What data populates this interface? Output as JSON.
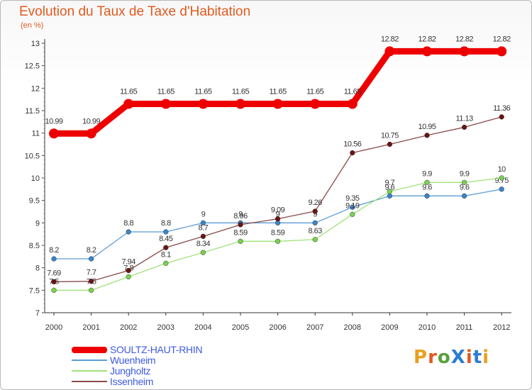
{
  "title": "Evolution du Taux de Taxe d'Habitation",
  "subtitle": "(en %)",
  "logo": {
    "text": "ProXiti",
    "colors": [
      "#e8a020",
      "#e05a20",
      "#5aa03a",
      "#2a7ed0",
      "#e05a20",
      "#2a7ed0",
      "#e8a020"
    ]
  },
  "chart_data": {
    "type": "line",
    "x": [
      "2000",
      "2001",
      "2002",
      "2003",
      "2004",
      "2005",
      "2006",
      "2007",
      "2008",
      "2009",
      "2010",
      "2011",
      "2012"
    ],
    "ylim": [
      7,
      13
    ],
    "yticks": [
      "7",
      "7.5",
      "8",
      "8.5",
      "9",
      "9.5",
      "10",
      "10.5",
      "11",
      "11.5",
      "12",
      "12.5",
      "13"
    ],
    "yticks_values": [
      7,
      7.5,
      8,
      8.5,
      9,
      9.5,
      10,
      10.5,
      11,
      11.5,
      12,
      12.5,
      13
    ],
    "series": [
      {
        "name": "SOULTZ-HAUT-RHIN",
        "color": "#ee0000",
        "marker": "#ee0000",
        "thick": true,
        "values": [
          10.99,
          10.99,
          11.65,
          11.65,
          11.65,
          11.65,
          11.65,
          11.65,
          11.65,
          12.82,
          12.82,
          12.82,
          12.82
        ],
        "labels": [
          "10.99",
          "10.99",
          "11.65",
          "11.65",
          "11.65",
          "11.65",
          "11.65",
          "11.65",
          "11.65",
          "12.82",
          "12.82",
          "12.82",
          "12.82"
        ]
      },
      {
        "name": "Wuenheim",
        "color": "#5b9bd5",
        "marker": "#3a85c8",
        "thick": false,
        "values": [
          8.2,
          8.2,
          8.8,
          8.8,
          9,
          9,
          9,
          9,
          9.35,
          9.6,
          9.6,
          9.6,
          9.75
        ],
        "labels": [
          "8.2",
          "8.2",
          "8.8",
          "8.8",
          "9",
          "9",
          "9",
          "9",
          "9.35",
          "9.6",
          "9.6",
          "9.6",
          "9.75"
        ]
      },
      {
        "name": "Jungholtz",
        "color": "#9ee27a",
        "marker": "#79d24e",
        "thick": false,
        "values": [
          7.5,
          7.5,
          7.8,
          8.1,
          8.34,
          8.59,
          8.59,
          8.63,
          9.19,
          9.7,
          9.9,
          9.9,
          10
        ],
        "labels": [
          "7.5",
          "7.5",
          "7.8",
          "8.1",
          "8.34",
          "8.59",
          "8.59",
          "8.63",
          "9.19",
          "9.7",
          "9.9",
          "9.9",
          "10"
        ]
      },
      {
        "name": "Issenheim",
        "color": "#8a4a4a",
        "marker": "#6a1414",
        "thick": false,
        "values": [
          7.69,
          7.7,
          7.94,
          8.45,
          8.7,
          8.96,
          9.09,
          9.26,
          10.56,
          10.75,
          10.95,
          11.13,
          11.36
        ],
        "labels": [
          "7.69",
          "7.7",
          "7.94",
          "8.45",
          "8.7",
          "8.96",
          "9.09",
          "9.26",
          "10.56",
          "10.75",
          "10.95",
          "11.13",
          "11.36"
        ]
      }
    ]
  }
}
